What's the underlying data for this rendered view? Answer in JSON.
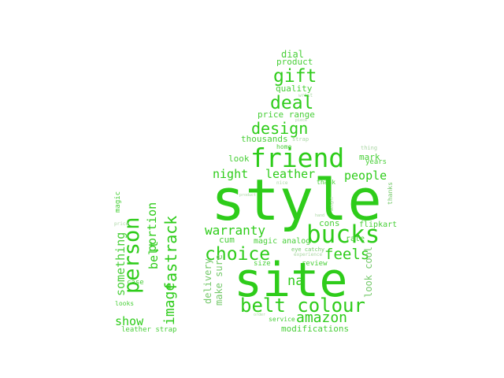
{
  "colors": {
    "primary": "#2ecc1a",
    "medium": "#48cf38",
    "light": "#74c86a",
    "pale": "#a9d6a3",
    "background": "#ffffff"
  },
  "words": [
    "style",
    "site",
    "friend",
    "bucks",
    "belt colour",
    "choice",
    "person",
    "fastrack",
    "image",
    "portion",
    "belt",
    "amazon",
    "warranty",
    "deal",
    "gift",
    "design",
    "night",
    "leather",
    "people",
    "feels",
    "show",
    "something",
    "magic",
    "na",
    "delivery",
    "make sure",
    "cum",
    "magic analog",
    "look",
    "thousands",
    "price range",
    "quality",
    "product",
    "dial",
    "wrist",
    "home",
    "mark",
    "years",
    "cons",
    "rate",
    "flipkart",
    "look cool",
    "thanks",
    "modifications",
    "service",
    "leather strap",
    "case",
    "looks",
    "price",
    "strap",
    "piece",
    "thing",
    "nice",
    "thank",
    "review",
    "size",
    "experience",
    "eye catchy",
    "order",
    "catchy",
    "looks",
    "worth",
    "weight",
    "product",
    "hand"
  ]
}
